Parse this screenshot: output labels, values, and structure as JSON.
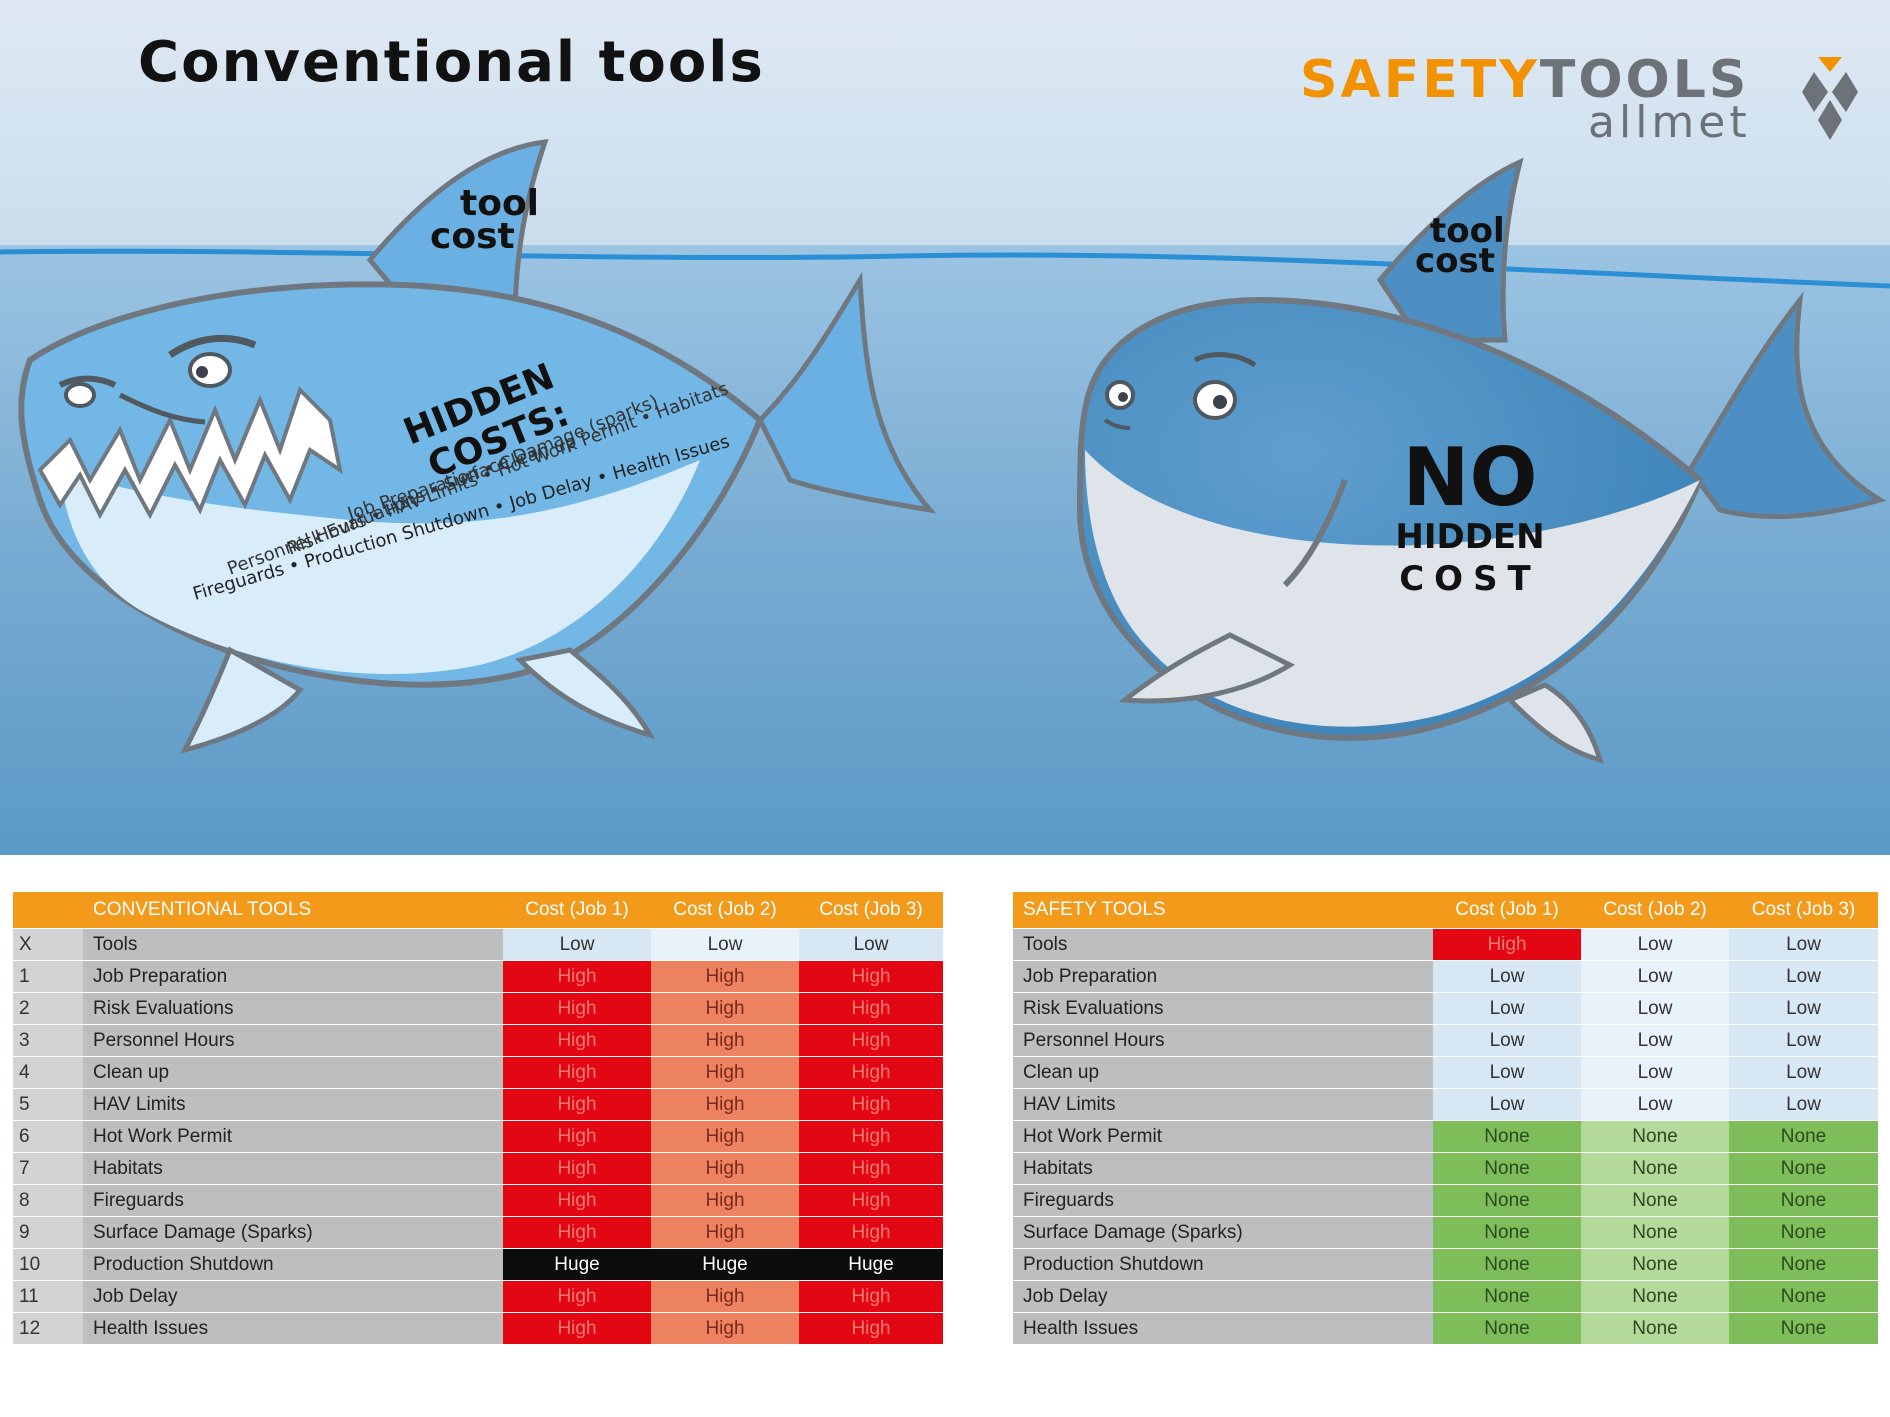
{
  "heading": "Conventional tools",
  "logo": {
    "brand_a": "SAFETY",
    "brand_b": "TOOLS",
    "sub": "allmet"
  },
  "shark": {
    "fin_text": [
      "tool",
      "cost"
    ],
    "hidden_title": [
      "HIDDEN",
      "COSTS:"
    ],
    "lines": [
      "Job Preparation • Clean up",
      "Risk Evaluations • Surface Damage (sparks)",
      "Personnel Hours • HAV Limits • Hot Work Permit • Habitats",
      "Fireguards • Production Shutdown • Job Delay • Health Issues"
    ]
  },
  "whale": {
    "fin_text": [
      "tool",
      "cost"
    ],
    "label": [
      "NO",
      "HIDDEN",
      "COST"
    ]
  },
  "conventional_table": {
    "title": "CONVENTIONAL TOOLS",
    "columns": [
      "Cost (Job 1)",
      "Cost (Job 2)",
      "Cost (Job 3)"
    ],
    "rows": [
      {
        "num": "X",
        "label": "Tools",
        "values": [
          "Low",
          "Low",
          "Low"
        ]
      },
      {
        "num": "1",
        "label": "Job Preparation",
        "values": [
          "High",
          "High",
          "High"
        ]
      },
      {
        "num": "2",
        "label": "Risk Evaluations",
        "values": [
          "High",
          "High",
          "High"
        ]
      },
      {
        "num": "3",
        "label": "Personnel Hours",
        "values": [
          "High",
          "High",
          "High"
        ]
      },
      {
        "num": "4",
        "label": "Clean up",
        "values": [
          "High",
          "High",
          "High"
        ]
      },
      {
        "num": "5",
        "label": "HAV Limits",
        "values": [
          "High",
          "High",
          "High"
        ]
      },
      {
        "num": "6",
        "label": "Hot Work Permit",
        "values": [
          "High",
          "High",
          "High"
        ]
      },
      {
        "num": "7",
        "label": "Habitats",
        "values": [
          "High",
          "High",
          "High"
        ]
      },
      {
        "num": "8",
        "label": "Fireguards",
        "values": [
          "High",
          "High",
          "High"
        ]
      },
      {
        "num": "9",
        "label": "Surface Damage (Sparks)",
        "values": [
          "High",
          "High",
          "High"
        ]
      },
      {
        "num": "10",
        "label": "Production Shutdown",
        "values": [
          "Huge",
          "Huge",
          "Huge"
        ]
      },
      {
        "num": "11",
        "label": "Job Delay",
        "values": [
          "High",
          "High",
          "High"
        ]
      },
      {
        "num": "12",
        "label": "Health Issues",
        "values": [
          "High",
          "High",
          "High"
        ]
      }
    ]
  },
  "safety_table": {
    "title": "SAFETY TOOLS",
    "columns": [
      "Cost (Job 1)",
      "Cost (Job 2)",
      "Cost (Job 3)"
    ],
    "rows": [
      {
        "label": "Tools",
        "values": [
          "High",
          "Low",
          "Low"
        ]
      },
      {
        "label": "Job Preparation",
        "values": [
          "Low",
          "Low",
          "Low"
        ]
      },
      {
        "label": "Risk Evaluations",
        "values": [
          "Low",
          "Low",
          "Low"
        ]
      },
      {
        "label": "Personnel Hours",
        "values": [
          "Low",
          "Low",
          "Low"
        ]
      },
      {
        "label": "Clean up",
        "values": [
          "Low",
          "Low",
          "Low"
        ]
      },
      {
        "label": "HAV Limits",
        "values": [
          "Low",
          "Low",
          "Low"
        ]
      },
      {
        "label": "Hot Work Permit",
        "values": [
          "None",
          "None",
          "None"
        ]
      },
      {
        "label": "Habitats",
        "values": [
          "None",
          "None",
          "None"
        ]
      },
      {
        "label": "Fireguards",
        "values": [
          "None",
          "None",
          "None"
        ]
      },
      {
        "label": "Surface Damage (Sparks)",
        "values": [
          "None",
          "None",
          "None"
        ]
      },
      {
        "label": "Production Shutdown",
        "values": [
          "None",
          "None",
          "None"
        ]
      },
      {
        "label": "Job Delay",
        "values": [
          "None",
          "None",
          "None"
        ]
      },
      {
        "label": "Health Issues",
        "values": [
          "None",
          "None",
          "None"
        ]
      }
    ]
  },
  "colors": {
    "orange": "#f39a1b",
    "high": "#e30613",
    "high_light": "#ed8261",
    "huge": "#0c0c0c",
    "none": "#7dbe5b",
    "none_light": "#b3d99b",
    "low": "#d7e7f4",
    "water_top": "#7fb3d7",
    "water_bottom": "#5e9dc8"
  }
}
